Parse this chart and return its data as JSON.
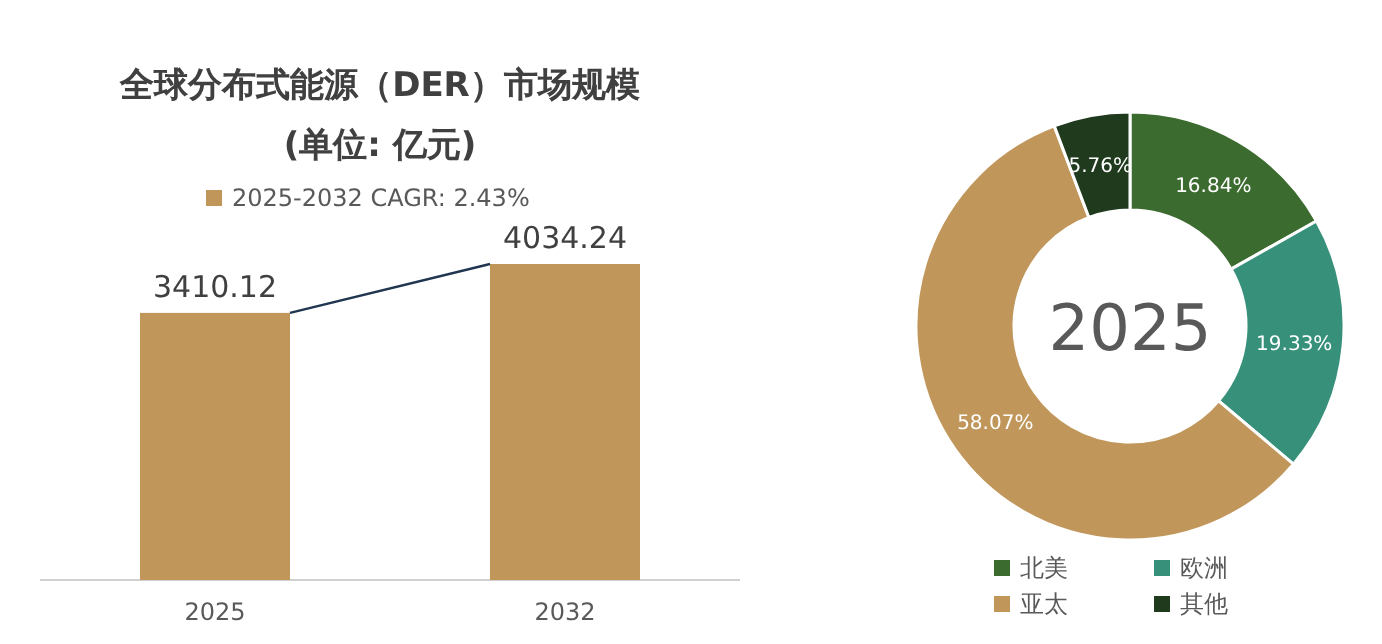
{
  "chart_data": [
    {
      "type": "bar",
      "title": "全球分布式能源（DER）市场规模",
      "subtitle": "(单位: 亿元)",
      "categories": [
        "2025",
        "2032"
      ],
      "tick_labels": "x",
      "data_labels": true,
      "legend": "top",
      "series": [
        {
          "name": "2025-2032 CAGR: 2.43%",
          "color": "#c0965a",
          "values": [
            3410.12,
            4034.24
          ]
        }
      ]
    },
    {
      "type": "donut",
      "categories": [
        "北美",
        "欧洲",
        "亚太",
        "其他"
      ],
      "values": [
        16.84,
        19.33,
        58.07,
        5.76
      ],
      "value_labels": [
        "16.84%",
        "19.33%",
        "58.07%",
        "5.76%"
      ],
      "colors": [
        "#3b6b2e",
        "#36907a",
        "#c0965a",
        "#1f3a1c"
      ],
      "legend": "bottom",
      "annotations": [
        "2025"
      ]
    }
  ]
}
